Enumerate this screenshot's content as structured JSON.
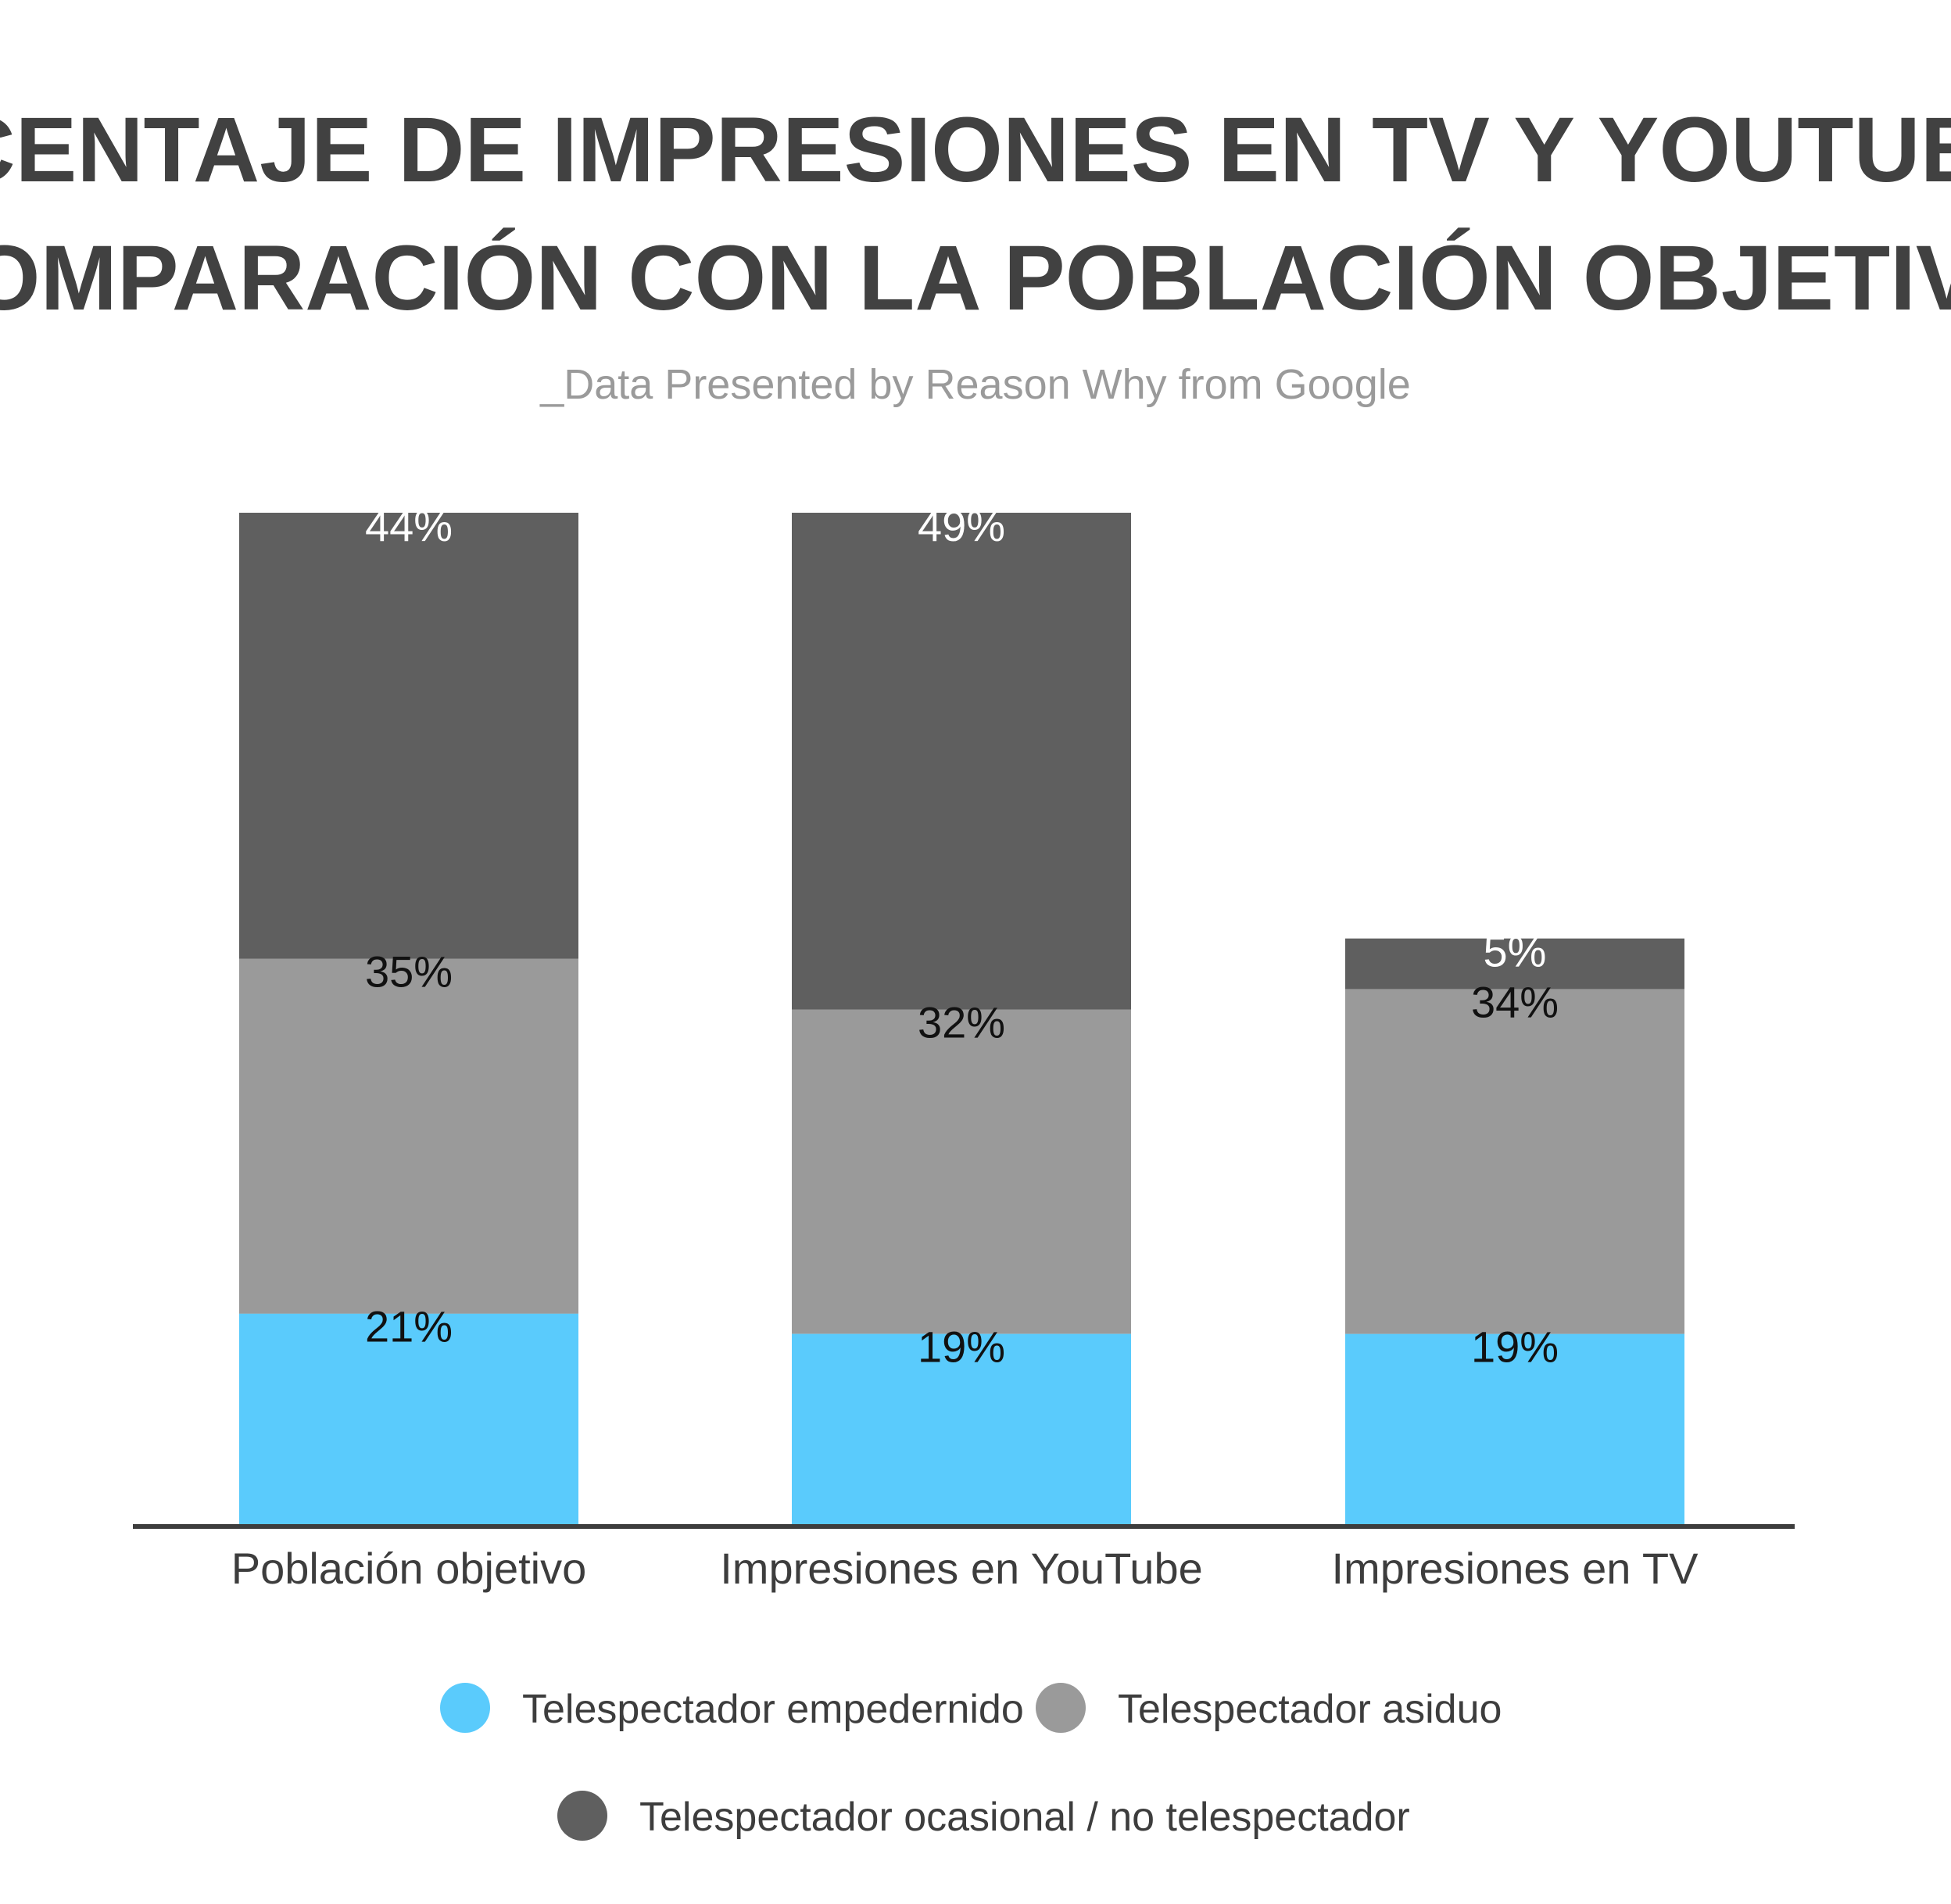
{
  "title_lines": [
    "PORCENTAJE DE IMPRESIONES EN TV Y YOUTUBE EN",
    "COMPARACIÓN CON LA POBLACIÓN OBJETIVO"
  ],
  "subtitle": "_Data Presented by Reason Why from Google",
  "colors": {
    "title": "#414141",
    "subtitle": "#9a9a9a",
    "axis": "#3d3d3d",
    "label_dark": "#111111",
    "label_light": "#ffffff"
  },
  "chart_data": {
    "type": "bar",
    "stacked": true,
    "title": "PORCENTAJE DE IMPRESIONES EN TV Y YOUTUBE EN COMPARACIÓN CON LA POBLACIÓN OBJETIVO",
    "subtitle": "_Data Presented by Reason Why from Google",
    "categories": [
      "Población objetivo",
      "Impresiones en YouTube",
      "Impresiones en TV"
    ],
    "series": [
      {
        "name": "Telespectador empedernido",
        "values": [
          21,
          19,
          19
        ],
        "labels": [
          "21%",
          "19%",
          "19%"
        ],
        "color": "#5acbfc"
      },
      {
        "name": "Telespectador asiduo",
        "values": [
          35,
          32,
          34
        ],
        "labels": [
          "35%",
          "32%",
          "34%"
        ],
        "color": "#9a9a9a"
      },
      {
        "name": "Telespectador ocasional / no telespectador",
        "values": [
          44,
          49,
          5
        ],
        "labels": [
          "44%",
          "49%",
          "5%"
        ],
        "color": "#5f5f5f"
      }
    ],
    "xlabel": "",
    "ylabel": "",
    "ylim": [
      0,
      100
    ],
    "grid": false,
    "legend_position": "bottom"
  }
}
